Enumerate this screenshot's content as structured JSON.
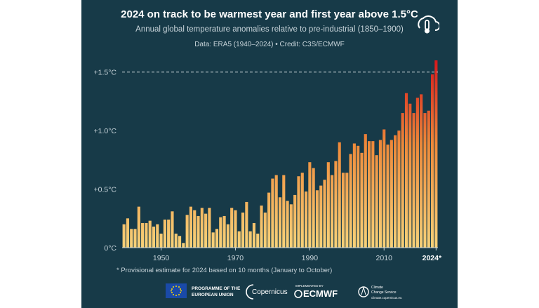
{
  "colors": {
    "background": "#173a48",
    "bar_low": "#f7d27a",
    "bar_mid": "#ee8a3a",
    "bar_high": "#d7191c",
    "threshold_line": "#cfd8dc"
  },
  "header": {
    "title": "2024 on track to be warmest year and first year above 1.5°C",
    "subtitle": "Annual global temperature anomalies relative to pre-industrial (1850–1900)",
    "credit": "Data: ERA5 (1940–2024) • Credit: C3S/ECMWF"
  },
  "footnote": "* Provisional estimate for 2024 based on 10 months (January to October)",
  "logos": {
    "eu_line1": "PROGRAMME OF THE",
    "eu_line2": "EUROPEAN UNION",
    "copernicus": "Copernicus",
    "ecmwf_small": "IMPLEMENTED BY",
    "ecmwf": "ECMWF",
    "c3s_line1": "Climate",
    "c3s_line2": "Change Service",
    "c3s_url": "climate.copernicus.eu"
  },
  "badge_icon": "thermometer-cloud-icon",
  "chart_data": {
    "type": "bar",
    "title": "2024 on track to be warmest year and first year above 1.5°C",
    "subtitle": "Annual global temperature anomalies relative to pre-industrial (1850–1900)",
    "xlabel": "",
    "ylabel": "",
    "ylim": [
      0,
      1.6
    ],
    "yticks": [
      {
        "value": 0,
        "label": "0°C"
      },
      {
        "value": 0.5,
        "label": "+0.5°C"
      },
      {
        "value": 1.0,
        "label": "+1.0°C"
      },
      {
        "value": 1.5,
        "label": "+1.5°C"
      }
    ],
    "xticks": [
      {
        "value": 1950,
        "label": "1950"
      },
      {
        "value": 1970,
        "label": "1970"
      },
      {
        "value": 1990,
        "label": "1990"
      },
      {
        "value": 2010,
        "label": "2010"
      },
      {
        "value": 2024,
        "label": "2024*"
      }
    ],
    "threshold": 1.5,
    "grid": false,
    "x": [
      1940,
      1941,
      1942,
      1943,
      1944,
      1945,
      1946,
      1947,
      1948,
      1949,
      1950,
      1951,
      1952,
      1953,
      1954,
      1955,
      1956,
      1957,
      1958,
      1959,
      1960,
      1961,
      1962,
      1963,
      1964,
      1965,
      1966,
      1967,
      1968,
      1969,
      1970,
      1971,
      1972,
      1973,
      1974,
      1975,
      1976,
      1977,
      1978,
      1979,
      1980,
      1981,
      1982,
      1983,
      1984,
      1985,
      1986,
      1987,
      1988,
      1989,
      1990,
      1991,
      1992,
      1993,
      1994,
      1995,
      1996,
      1997,
      1998,
      1999,
      2000,
      2001,
      2002,
      2003,
      2004,
      2005,
      2006,
      2007,
      2008,
      2009,
      2010,
      2011,
      2012,
      2013,
      2014,
      2015,
      2016,
      2017,
      2018,
      2019,
      2020,
      2021,
      2022,
      2023,
      2024
    ],
    "values": [
      0.2,
      0.25,
      0.16,
      0.16,
      0.35,
      0.21,
      0.21,
      0.23,
      0.18,
      0.2,
      0.12,
      0.24,
      0.24,
      0.31,
      0.12,
      0.1,
      0.04,
      0.28,
      0.35,
      0.32,
      0.27,
      0.34,
      0.29,
      0.34,
      0.13,
      0.16,
      0.26,
      0.27,
      0.2,
      0.34,
      0.32,
      0.14,
      0.3,
      0.39,
      0.14,
      0.21,
      0.12,
      0.36,
      0.3,
      0.47,
      0.59,
      0.62,
      0.43,
      0.62,
      0.4,
      0.37,
      0.45,
      0.61,
      0.64,
      0.48,
      0.73,
      0.68,
      0.49,
      0.53,
      0.58,
      0.73,
      0.62,
      0.74,
      0.9,
      0.64,
      0.64,
      0.8,
      0.89,
      0.87,
      0.81,
      0.97,
      0.91,
      0.91,
      0.79,
      0.92,
      1.01,
      0.88,
      0.92,
      0.96,
      1.0,
      1.15,
      1.32,
      1.23,
      1.15,
      1.28,
      1.31,
      1.15,
      1.17,
      1.48,
      1.6
    ]
  }
}
